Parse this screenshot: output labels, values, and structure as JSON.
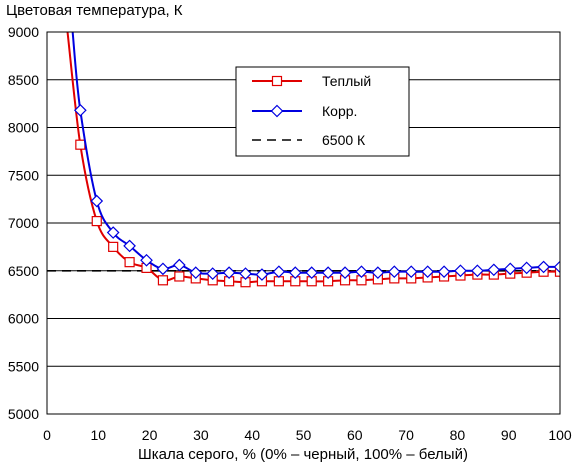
{
  "chart_data": {
    "type": "line",
    "title": "",
    "ylabel": "Цветовая температура, К",
    "xlabel": "Шкала серого, % (0% – черный, 100% – белый)",
    "xlim": [
      0,
      100
    ],
    "ylim": [
      5000,
      9000
    ],
    "xticks": [
      0,
      10,
      20,
      30,
      40,
      50,
      60,
      70,
      80,
      90,
      100
    ],
    "yticks": [
      5000,
      5500,
      6000,
      6500,
      7000,
      7500,
      8000,
      8500,
      9000
    ],
    "grid": "horizontal",
    "legend_position": "top-center",
    "series": [
      {
        "name": "Теплый",
        "color": "#e00000",
        "marker": "square",
        "x": [
          4,
          6.5,
          9.7,
          12.9,
          16.1,
          19.4,
          22.6,
          25.8,
          29,
          32.3,
          35.5,
          38.7,
          41.9,
          45.2,
          48.4,
          51.6,
          54.8,
          58.1,
          61.3,
          64.5,
          67.7,
          71,
          74.2,
          77.4,
          80.6,
          83.9,
          87.1,
          90.3,
          93.5,
          96.8,
          100
        ],
        "values": [
          9000,
          7820,
          7020,
          6750,
          6590,
          6530,
          6400,
          6440,
          6420,
          6400,
          6390,
          6380,
          6390,
          6390,
          6390,
          6390,
          6390,
          6400,
          6400,
          6410,
          6420,
          6420,
          6430,
          6440,
          6450,
          6460,
          6460,
          6470,
          6480,
          6490,
          6490
        ]
      },
      {
        "name": "Корр.",
        "color": "#0000e0",
        "marker": "diamond",
        "x": [
          5,
          6.5,
          9.7,
          12.9,
          16.1,
          19.4,
          22.6,
          25.8,
          29,
          32.3,
          35.5,
          38.7,
          41.9,
          45.2,
          48.4,
          51.6,
          54.8,
          58.1,
          61.3,
          64.5,
          67.7,
          71,
          74.2,
          77.4,
          80.6,
          83.9,
          87.1,
          90.3,
          93.5,
          96.8,
          100
        ],
        "values": [
          9000,
          8180,
          7230,
          6900,
          6760,
          6610,
          6520,
          6560,
          6480,
          6470,
          6480,
          6470,
          6460,
          6490,
          6480,
          6480,
          6480,
          6480,
          6490,
          6480,
          6490,
          6490,
          6490,
          6490,
          6500,
          6500,
          6510,
          6520,
          6530,
          6540,
          6540
        ]
      },
      {
        "name": "6500 К",
        "color": "#000000",
        "marker": "none",
        "dashed": true,
        "x": [
          0,
          100
        ],
        "values": [
          6500,
          6500
        ]
      }
    ]
  }
}
